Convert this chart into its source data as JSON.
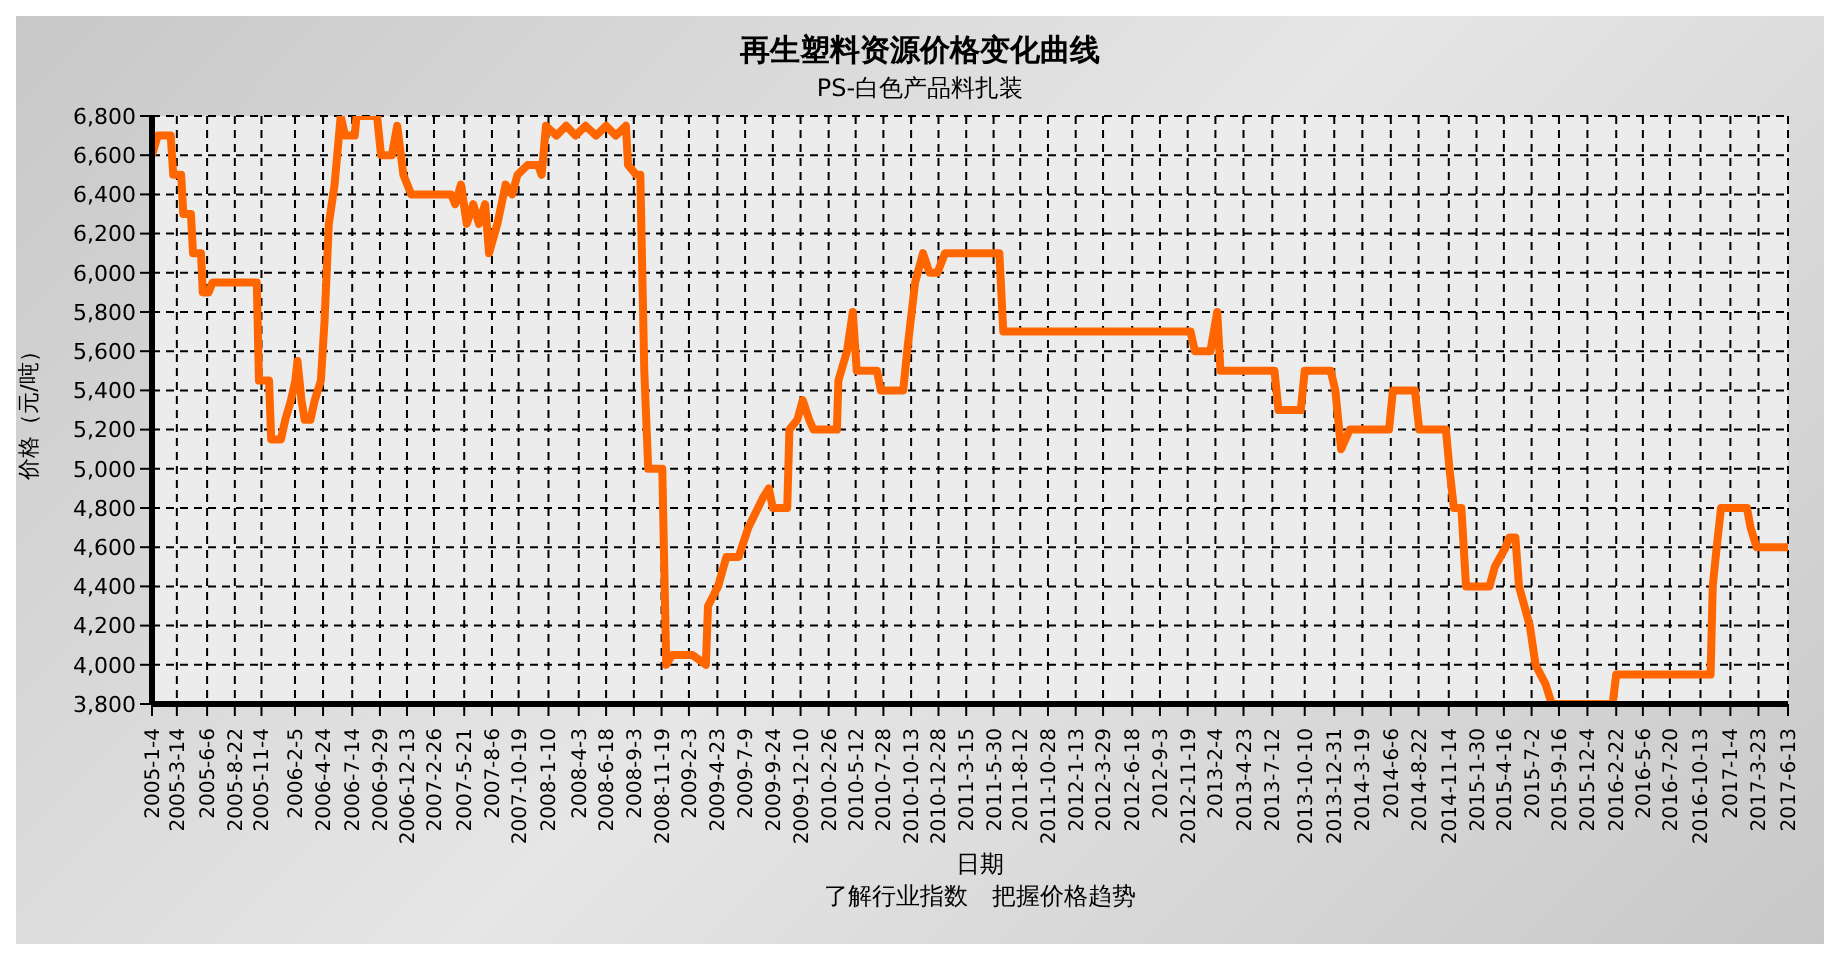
{
  "chart_data": {
    "type": "line",
    "title": "再生塑料资源价格变化曲线",
    "subtitle": "PS-白色产品料扎装",
    "xlabel": "日期",
    "ylabel": "价格（元/吨）",
    "annotations": [
      "了解行业指数　把握价格趋势"
    ],
    "grid": true,
    "legend": false,
    "line_style": "solid",
    "xlim": [
      "2005-01-04",
      "2017-06-13"
    ],
    "xticks": [
      {
        "value": "2005-01-04",
        "label": "2005-1-4"
      },
      {
        "value": "2005-03-14",
        "label": "2005-3-14"
      },
      {
        "value": "2005-06-06",
        "label": "2005-6-6"
      },
      {
        "value": "2005-08-22",
        "label": "2005-8-22"
      },
      {
        "value": "2005-11-04",
        "label": "2005-11-4"
      },
      {
        "value": "2006-02-05",
        "label": "2006-2-5"
      },
      {
        "value": "2006-04-24",
        "label": "2006-4-24"
      },
      {
        "value": "2006-07-14",
        "label": "2006-7-14"
      },
      {
        "value": "2006-09-29",
        "label": "2006-9-29"
      },
      {
        "value": "2006-12-13",
        "label": "2006-12-13"
      },
      {
        "value": "2007-02-26",
        "label": "2007-2-26"
      },
      {
        "value": "2007-05-21",
        "label": "2007-5-21"
      },
      {
        "value": "2007-08-06",
        "label": "2007-8-6"
      },
      {
        "value": "2007-10-19",
        "label": "2007-10-19"
      },
      {
        "value": "2008-01-10",
        "label": "2008-1-10"
      },
      {
        "value": "2008-04-03",
        "label": "2008-4-3"
      },
      {
        "value": "2008-06-18",
        "label": "2008-6-18"
      },
      {
        "value": "2008-09-03",
        "label": "2008-9-3"
      },
      {
        "value": "2008-11-19",
        "label": "2008-11-19"
      },
      {
        "value": "2009-02-03",
        "label": "2009-2-3"
      },
      {
        "value": "2009-04-23",
        "label": "2009-4-23"
      },
      {
        "value": "2009-07-09",
        "label": "2009-7-9"
      },
      {
        "value": "2009-09-24",
        "label": "2009-9-24"
      },
      {
        "value": "2009-12-10",
        "label": "2009-12-10"
      },
      {
        "value": "2010-02-26",
        "label": "2010-2-26"
      },
      {
        "value": "2010-05-12",
        "label": "2010-5-12"
      },
      {
        "value": "2010-07-28",
        "label": "2010-7-28"
      },
      {
        "value": "2010-10-13",
        "label": "2010-10-13"
      },
      {
        "value": "2010-12-28",
        "label": "2010-12-28"
      },
      {
        "value": "2011-03-15",
        "label": "2011-3-15"
      },
      {
        "value": "2011-05-30",
        "label": "2011-5-30"
      },
      {
        "value": "2011-08-12",
        "label": "2011-8-12"
      },
      {
        "value": "2011-10-28",
        "label": "2011-10-28"
      },
      {
        "value": "2012-01-13",
        "label": "2012-1-13"
      },
      {
        "value": "2012-03-29",
        "label": "2012-3-29"
      },
      {
        "value": "2012-06-18",
        "label": "2012-6-18"
      },
      {
        "value": "2012-09-03",
        "label": "2012-9-3"
      },
      {
        "value": "2012-11-19",
        "label": "2012-11-19"
      },
      {
        "value": "2013-02-04",
        "label": "2013-2-4"
      },
      {
        "value": "2013-04-23",
        "label": "2013-4-23"
      },
      {
        "value": "2013-07-12",
        "label": "2013-7-12"
      },
      {
        "value": "2013-10-10",
        "label": "2013-10-10"
      },
      {
        "value": "2013-12-31",
        "label": "2013-12-31"
      },
      {
        "value": "2014-03-19",
        "label": "2014-3-19"
      },
      {
        "value": "2014-06-06",
        "label": "2014-6-6"
      },
      {
        "value": "2014-08-22",
        "label": "2014-8-22"
      },
      {
        "value": "2014-11-14",
        "label": "2014-11-14"
      },
      {
        "value": "2015-01-30",
        "label": "2015-1-30"
      },
      {
        "value": "2015-04-16",
        "label": "2015-4-16"
      },
      {
        "value": "2015-07-02",
        "label": "2015-7-2"
      },
      {
        "value": "2015-09-16",
        "label": "2015-9-16"
      },
      {
        "value": "2015-12-04",
        "label": "2015-12-4"
      },
      {
        "value": "2016-02-22",
        "label": "2016-2-22"
      },
      {
        "value": "2016-05-06",
        "label": "2016-5-6"
      },
      {
        "value": "2016-07-20",
        "label": "2016-7-20"
      },
      {
        "value": "2016-10-13",
        "label": "2016-10-13"
      },
      {
        "value": "2017-01-04",
        "label": "2017-1-4"
      },
      {
        "value": "2017-03-23",
        "label": "2017-3-23"
      },
      {
        "value": "2017-06-13",
        "label": "2017-6-13"
      }
    ],
    "ylim": [
      3800,
      6800
    ],
    "yticks": [
      {
        "value": 3800,
        "label": "3,800"
      },
      {
        "value": 4000,
        "label": "4,000"
      },
      {
        "value": 4200,
        "label": "4,200"
      },
      {
        "value": 4400,
        "label": "4,400"
      },
      {
        "value": 4600,
        "label": "4,600"
      },
      {
        "value": 4800,
        "label": "4,800"
      },
      {
        "value": 5000,
        "label": "5,000"
      },
      {
        "value": 5200,
        "label": "5,200"
      },
      {
        "value": 5400,
        "label": "5,400"
      },
      {
        "value": 5600,
        "label": "5,600"
      },
      {
        "value": 5800,
        "label": "5,800"
      },
      {
        "value": 6000,
        "label": "6,000"
      },
      {
        "value": 6200,
        "label": "6,200"
      },
      {
        "value": 6400,
        "label": "6,400"
      },
      {
        "value": 6600,
        "label": "6,600"
      },
      {
        "value": 6800,
        "label": "6,800"
      }
    ],
    "series": [
      {
        "color": "#ff6600",
        "x": [
          "2005-01-04",
          "2005-01-20",
          "2005-02-25",
          "2005-03-04",
          "2005-03-26",
          "2005-04-01",
          "2005-04-22",
          "2005-04-28",
          "2005-05-20",
          "2005-05-25",
          "2005-06-10",
          "2005-06-21",
          "2005-10-22",
          "2005-10-28",
          "2005-11-25",
          "2005-12-01",
          "2005-12-28",
          "2006-01-09",
          "2006-01-25",
          "2006-02-06",
          "2006-02-12",
          "2006-02-23",
          "2006-03-04",
          "2006-03-20",
          "2006-04-01",
          "2006-04-18",
          "2006-04-28",
          "2006-05-10",
          "2006-05-26",
          "2006-06-12",
          "2006-06-24",
          "2006-07-21",
          "2006-07-26",
          "2006-09-21",
          "2006-10-02",
          "2006-11-01",
          "2006-11-11",
          "2006-11-16",
          "2006-12-03",
          "2006-12-25",
          "2007-04-15",
          "2007-04-26",
          "2007-05-12",
          "2007-05-28",
          "2007-06-15",
          "2007-07-01",
          "2007-07-18",
          "2007-07-29",
          "2007-08-21",
          "2007-09-13",
          "2007-10-01",
          "2007-10-16",
          "2007-11-13",
          "2007-12-12",
          "2007-12-22",
          "2008-01-03",
          "2008-02-01",
          "2008-02-28",
          "2008-03-25",
          "2008-04-22",
          "2008-05-21",
          "2008-06-18",
          "2008-07-15",
          "2008-08-12",
          "2008-08-18",
          "2008-09-10",
          "2008-09-21",
          "2008-10-02",
          "2008-10-13",
          "2008-11-21",
          "2008-12-02",
          "2008-12-18",
          "2009-02-13",
          "2009-03-22",
          "2009-03-28",
          "2009-04-25",
          "2009-05-18",
          "2009-06-21",
          "2009-07-18",
          "2009-08-27",
          "2009-09-13",
          "2009-09-24",
          "2009-11-03",
          "2009-11-09",
          "2009-12-01",
          "2009-12-16",
          "2010-01-03",
          "2010-01-15",
          "2010-03-21",
          "2010-03-25",
          "2010-04-18",
          "2010-05-04",
          "2010-05-15",
          "2010-07-10",
          "2010-07-21",
          "2010-09-21",
          "2010-10-02",
          "2010-10-24",
          "2010-11-15",
          "2010-12-03",
          "2010-12-25",
          "2011-01-15",
          "2011-06-15",
          "2011-06-26",
          "2012-11-27",
          "2012-12-09",
          "2013-01-21",
          "2013-02-09",
          "2013-02-18",
          "2013-07-18",
          "2013-07-29",
          "2013-09-29",
          "2013-10-10",
          "2013-12-21",
          "2014-01-03",
          "2014-01-19",
          "2014-02-12",
          "2014-06-01",
          "2014-06-12",
          "2014-08-12",
          "2014-08-24",
          "2014-11-06",
          "2014-11-16",
          "2014-11-28",
          "2014-12-19",
          "2015-01-01",
          "2015-03-07",
          "2015-03-22",
          "2015-04-21",
          "2015-05-01",
          "2015-05-18",
          "2015-05-28",
          "2015-06-27",
          "2015-07-13",
          "2015-08-10",
          "2015-08-27",
          "2016-02-12",
          "2016-02-22",
          "2016-11-10",
          "2016-11-16",
          "2016-11-27",
          "2016-12-09",
          "2017-02-19",
          "2017-03-01",
          "2017-03-18",
          "2017-06-13"
        ],
        "values": [
          6600,
          6700,
          6700,
          6500,
          6500,
          6300,
          6300,
          6100,
          6100,
          5900,
          5900,
          5950,
          5950,
          5450,
          5450,
          5150,
          5150,
          5250,
          5350,
          5450,
          5550,
          5350,
          5250,
          5250,
          5350,
          5450,
          5750,
          6250,
          6450,
          6800,
          6700,
          6700,
          6800,
          6800,
          6600,
          6600,
          6700,
          6750,
          6500,
          6400,
          6400,
          6350,
          6450,
          6250,
          6350,
          6250,
          6350,
          6100,
          6250,
          6450,
          6400,
          6500,
          6550,
          6550,
          6500,
          6750,
          6700,
          6750,
          6700,
          6750,
          6700,
          6750,
          6700,
          6750,
          6550,
          6500,
          6500,
          5500,
          5000,
          5000,
          4000,
          4050,
          4050,
          4000,
          4300,
          4400,
          4550,
          4550,
          4700,
          4850,
          4900,
          4800,
          4800,
          5200,
          5250,
          5350,
          5250,
          5200,
          5200,
          5450,
          5600,
          5800,
          5500,
          5500,
          5400,
          5400,
          5600,
          5950,
          6100,
          6000,
          6000,
          6100,
          6100,
          5700,
          5700,
          5600,
          5600,
          5800,
          5500,
          5500,
          5300,
          5300,
          5500,
          5500,
          5400,
          5100,
          5200,
          5200,
          5400,
          5400,
          5200,
          5200,
          5000,
          4800,
          4800,
          4400,
          4400,
          4500,
          4600,
          4650,
          4650,
          4400,
          4200,
          4000,
          3900,
          3800,
          3800,
          3950,
          3950,
          4400,
          4600,
          4800,
          4800,
          4700,
          4600,
          4600
        ]
      }
    ]
  }
}
